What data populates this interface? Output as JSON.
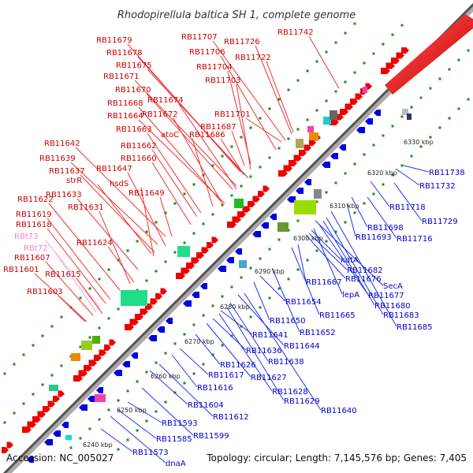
{
  "header": {
    "title": "Rhodopirellula baltica SH 1, complete genome"
  },
  "footer": {
    "accession": "Accession: NC_005027",
    "summary": "Topology: circular; Length: 7,145,576 bp; Genes: 7,405"
  },
  "colors": {
    "forward_gene": "#ee0000",
    "reverse_gene": "#0000dd",
    "forward_label": "#cc0000",
    "reverse_label": "#0000cc",
    "rna_label": "#ee88cc",
    "backbone": "#888888",
    "grid_dot": "#228822"
  },
  "scale": {
    "ticks": [
      "6240 kbp",
      "6250 kbp",
      "6260 kbp",
      "6270 kbp",
      "6280 kbp",
      "6290 kbp",
      "6300 kbp",
      "6310 kbp",
      "6320 kbp",
      "6330 kbp"
    ]
  },
  "forward_labels": [
    "RB11742",
    "RB11726",
    "RB11722",
    "RB11707",
    "RB11706",
    "RB11704",
    "RB11703",
    "RB11679",
    "RB11678",
    "RB11675",
    "RB11671",
    "RB11670",
    "RB11674",
    "RB11668",
    "RB11664",
    "RB11672",
    "RB11701",
    "RB11687",
    "RB11686",
    "RB11663",
    "atoC",
    "RB11662",
    "RB11660",
    "RB11642",
    "RB11639",
    "RB11637",
    "strR",
    "RB11647",
    "hsdS",
    "RB11633",
    "RB11649",
    "RB11631",
    "RB11622",
    "RB11619",
    "RB11618",
    "RBt73",
    "RB11624",
    "RBt72",
    "RB11607",
    "RB11601",
    "RB11615",
    "RB11603"
  ],
  "rna_labels": [
    "RBt73",
    "RBt72"
  ],
  "reverse_labels": [
    "RB11738",
    "RB11732",
    "RB11718",
    "RB11729",
    "RB11698",
    "RB11716",
    "RB11693",
    "kdtA",
    "RB11682",
    "RB11676",
    "SecA",
    "RB11667",
    "lepA",
    "RB11677",
    "RB11680",
    "RB11683",
    "RB11685",
    "RB11654",
    "RB11665",
    "RB11650",
    "RB11652",
    "RB11641",
    "RB11644",
    "RB11636",
    "RB11638",
    "RB11626",
    "RB11627",
    "RB11617",
    "RB11616",
    "RB11628",
    "RB11629",
    "RB11604",
    "RB11640",
    "RB11612",
    "RB11593",
    "RB11599",
    "RB11585",
    "RB11573",
    "dnaA"
  ]
}
